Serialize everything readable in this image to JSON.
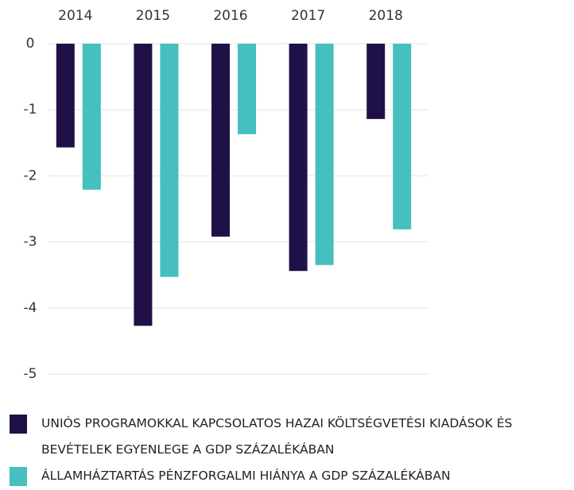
{
  "chart_data": {
    "type": "bar",
    "categories": [
      "2014",
      "2015",
      "2016",
      "2017",
      "2018"
    ],
    "series": [
      {
        "name": "UNIÓS PROGRAMOKKAL KAPCSOLATOS HAZAI KÖLTSÉGVETÉSI KIADÁSOK ÉS BEVÉTELEK EGYENLEGE A GDP SZÁZALÉKÁBAN",
        "color": "#1f1147",
        "values": [
          -1.57,
          -4.27,
          -2.92,
          -3.44,
          -1.14
        ]
      },
      {
        "name": "ÁLLAMHÁZTARTÁS PÉNZFORGALMI HIÁNYA A GDP SZÁZALÉKÁBAN",
        "color": "#45bfbf",
        "values": [
          -2.21,
          -3.53,
          -1.37,
          -3.35,
          -2.81
        ]
      }
    ],
    "ylim": [
      -5,
      0
    ],
    "yticks": [
      0,
      -1,
      -2,
      -3,
      -4,
      -5
    ],
    "grid": true,
    "legend": "bottom"
  }
}
